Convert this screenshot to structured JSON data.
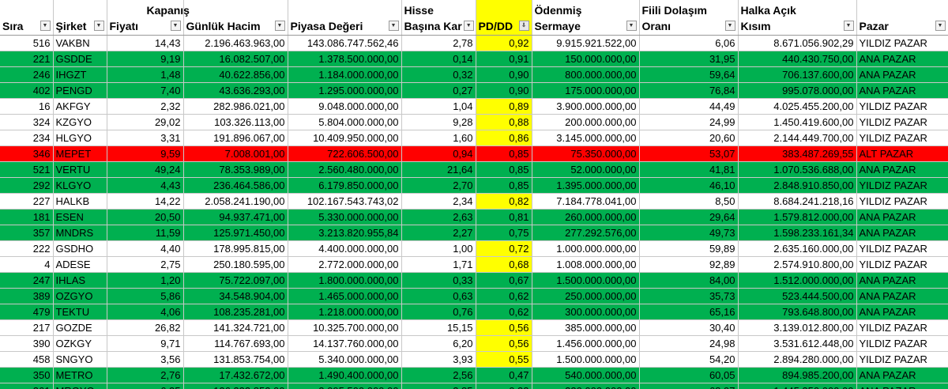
{
  "header_top": {
    "kapanis": "Kapanış",
    "hisse": "Hisse",
    "odenmis": "Ödenmiş",
    "fiili": "Fiili Dolaşım",
    "halka": "Halka Açık"
  },
  "header": {
    "sira": "Sıra",
    "sirket": "Şirket",
    "fiyati": "Fiyatı",
    "hacim": "Günlük Hacim",
    "piyasa": "Piyasa Değeri",
    "kar": "Başına Kar",
    "pddd": "PD/DD",
    "sermaye": "Sermaye",
    "orani": "Oranı",
    "kisim": "Kısım",
    "pazar": "Pazar"
  },
  "colors": {
    "green": "#00b050",
    "red": "#ff0000",
    "yellow": "#ffff00"
  },
  "rows": [
    {
      "sira": "516",
      "sirket": "VAKBN",
      "fiyat": "14,43",
      "hacim": "2.196.463.963,00",
      "piyasa": "143.086.747.562,46",
      "kar": "2,78",
      "pddd": "0,92",
      "sermaye": "9.915.921.522,00",
      "oran": "6,06",
      "kisim": "8.671.056.902,29",
      "pazar": "YILDIZ PAZAR",
      "color": "white",
      "pd_yellow": true
    },
    {
      "sira": "221",
      "sirket": "GSDDE",
      "fiyat": "9,19",
      "hacim": "16.082.507,00",
      "piyasa": "1.378.500.000,00",
      "kar": "0,14",
      "pddd": "0,91",
      "sermaye": "150.000.000,00",
      "oran": "31,95",
      "kisim": "440.430.750,00",
      "pazar": "ANA PAZAR",
      "color": "green",
      "pd_yellow": false
    },
    {
      "sira": "246",
      "sirket": "IHGZT",
      "fiyat": "1,48",
      "hacim": "40.622.856,00",
      "piyasa": "1.184.000.000,00",
      "kar": "0,32",
      "pddd": "0,90",
      "sermaye": "800.000.000,00",
      "oran": "59,64",
      "kisim": "706.137.600,00",
      "pazar": "ANA PAZAR",
      "color": "green",
      "pd_yellow": false
    },
    {
      "sira": "402",
      "sirket": "PENGD",
      "fiyat": "7,40",
      "hacim": "43.636.293,00",
      "piyasa": "1.295.000.000,00",
      "kar": "0,27",
      "pddd": "0,90",
      "sermaye": "175.000.000,00",
      "oran": "76,84",
      "kisim": "995.078.000,00",
      "pazar": "ANA PAZAR",
      "color": "green",
      "pd_yellow": false
    },
    {
      "sira": "16",
      "sirket": "AKFGY",
      "fiyat": "2,32",
      "hacim": "282.986.021,00",
      "piyasa": "9.048.000.000,00",
      "kar": "1,04",
      "pddd": "0,89",
      "sermaye": "3.900.000.000,00",
      "oran": "44,49",
      "kisim": "4.025.455.200,00",
      "pazar": "YILDIZ PAZAR",
      "color": "white",
      "pd_yellow": true
    },
    {
      "sira": "324",
      "sirket": "KZGYO",
      "fiyat": "29,02",
      "hacim": "103.326.113,00",
      "piyasa": "5.804.000.000,00",
      "kar": "9,28",
      "pddd": "0,88",
      "sermaye": "200.000.000,00",
      "oran": "24,99",
      "kisim": "1.450.419.600,00",
      "pazar": "YILDIZ PAZAR",
      "color": "white",
      "pd_yellow": true
    },
    {
      "sira": "234",
      "sirket": "HLGYO",
      "fiyat": "3,31",
      "hacim": "191.896.067,00",
      "piyasa": "10.409.950.000,00",
      "kar": "1,60",
      "pddd": "0,86",
      "sermaye": "3.145.000.000,00",
      "oran": "20,60",
      "kisim": "2.144.449.700,00",
      "pazar": "YILDIZ PAZAR",
      "color": "white",
      "pd_yellow": true
    },
    {
      "sira": "346",
      "sirket": "MEPET",
      "fiyat": "9,59",
      "hacim": "7.008.001,00",
      "piyasa": "722.606.500,00",
      "kar": "0,94",
      "pddd": "0,85",
      "sermaye": "75.350.000,00",
      "oran": "53,07",
      "kisim": "383.487.269,55",
      "pazar": "ALT PAZAR",
      "color": "red",
      "pd_yellow": false
    },
    {
      "sira": "521",
      "sirket": "VERTU",
      "fiyat": "49,24",
      "hacim": "78.353.989,00",
      "piyasa": "2.560.480.000,00",
      "kar": "21,64",
      "pddd": "0,85",
      "sermaye": "52.000.000,00",
      "oran": "41,81",
      "kisim": "1.070.536.688,00",
      "pazar": "ANA PAZAR",
      "color": "green",
      "pd_yellow": false
    },
    {
      "sira": "292",
      "sirket": "KLGYO",
      "fiyat": "4,43",
      "hacim": "236.464.586,00",
      "piyasa": "6.179.850.000,00",
      "kar": "2,70",
      "pddd": "0,85",
      "sermaye": "1.395.000.000,00",
      "oran": "46,10",
      "kisim": "2.848.910.850,00",
      "pazar": "YILDIZ PAZAR",
      "color": "green",
      "pd_yellow": false
    },
    {
      "sira": "227",
      "sirket": "HALKB",
      "fiyat": "14,22",
      "hacim": "2.058.241.190,00",
      "piyasa": "102.167.543.743,02",
      "kar": "2,34",
      "pddd": "0,82",
      "sermaye": "7.184.778.041,00",
      "oran": "8,50",
      "kisim": "8.684.241.218,16",
      "pazar": "YILDIZ PAZAR",
      "color": "white",
      "pd_yellow": true
    },
    {
      "sira": "181",
      "sirket": "ESEN",
      "fiyat": "20,50",
      "hacim": "94.937.471,00",
      "piyasa": "5.330.000.000,00",
      "kar": "2,63",
      "pddd": "0,81",
      "sermaye": "260.000.000,00",
      "oran": "29,64",
      "kisim": "1.579.812.000,00",
      "pazar": "ANA PAZAR",
      "color": "green",
      "pd_yellow": false
    },
    {
      "sira": "357",
      "sirket": "MNDRS",
      "fiyat": "11,59",
      "hacim": "125.971.450,00",
      "piyasa": "3.213.820.955,84",
      "kar": "2,27",
      "pddd": "0,75",
      "sermaye": "277.292.576,00",
      "oran": "49,73",
      "kisim": "1.598.233.161,34",
      "pazar": "ANA PAZAR",
      "color": "green",
      "pd_yellow": false
    },
    {
      "sira": "222",
      "sirket": "GSDHO",
      "fiyat": "4,40",
      "hacim": "178.995.815,00",
      "piyasa": "4.400.000.000,00",
      "kar": "1,00",
      "pddd": "0,72",
      "sermaye": "1.000.000.000,00",
      "oran": "59,89",
      "kisim": "2.635.160.000,00",
      "pazar": "YILDIZ PAZAR",
      "color": "white",
      "pd_yellow": true
    },
    {
      "sira": "4",
      "sirket": "ADESE",
      "fiyat": "2,75",
      "hacim": "250.180.595,00",
      "piyasa": "2.772.000.000,00",
      "kar": "1,71",
      "pddd": "0,68",
      "sermaye": "1.008.000.000,00",
      "oran": "92,89",
      "kisim": "2.574.910.800,00",
      "pazar": "YILDIZ PAZAR",
      "color": "white",
      "pd_yellow": true
    },
    {
      "sira": "247",
      "sirket": "IHLAS",
      "fiyat": "1,20",
      "hacim": "75.722.097,00",
      "piyasa": "1.800.000.000,00",
      "kar": "0,33",
      "pddd": "0,67",
      "sermaye": "1.500.000.000,00",
      "oran": "84,00",
      "kisim": "1.512.000.000,00",
      "pazar": "ANA PAZAR",
      "color": "green",
      "pd_yellow": false
    },
    {
      "sira": "389",
      "sirket": "OZGYO",
      "fiyat": "5,86",
      "hacim": "34.548.904,00",
      "piyasa": "1.465.000.000,00",
      "kar": "0,63",
      "pddd": "0,62",
      "sermaye": "250.000.000,00",
      "oran": "35,73",
      "kisim": "523.444.500,00",
      "pazar": "ANA PAZAR",
      "color": "green",
      "pd_yellow": false
    },
    {
      "sira": "479",
      "sirket": "TEKTU",
      "fiyat": "4,06",
      "hacim": "108.235.281,00",
      "piyasa": "1.218.000.000,00",
      "kar": "0,76",
      "pddd": "0,62",
      "sermaye": "300.000.000,00",
      "oran": "65,16",
      "kisim": "793.648.800,00",
      "pazar": "ANA PAZAR",
      "color": "green",
      "pd_yellow": false
    },
    {
      "sira": "217",
      "sirket": "GOZDE",
      "fiyat": "26,82",
      "hacim": "141.324.721,00",
      "piyasa": "10.325.700.000,00",
      "kar": "15,15",
      "pddd": "0,56",
      "sermaye": "385.000.000,00",
      "oran": "30,40",
      "kisim": "3.139.012.800,00",
      "pazar": "YILDIZ PAZAR",
      "color": "white",
      "pd_yellow": true
    },
    {
      "sira": "390",
      "sirket": "OZKGY",
      "fiyat": "9,71",
      "hacim": "114.767.693,00",
      "piyasa": "14.137.760.000,00",
      "kar": "6,20",
      "pddd": "0,56",
      "sermaye": "1.456.000.000,00",
      "oran": "24,98",
      "kisim": "3.531.612.448,00",
      "pazar": "YILDIZ PAZAR",
      "color": "white",
      "pd_yellow": true
    },
    {
      "sira": "458",
      "sirket": "SNGYO",
      "fiyat": "3,56",
      "hacim": "131.853.754,00",
      "piyasa": "5.340.000.000,00",
      "kar": "3,93",
      "pddd": "0,55",
      "sermaye": "1.500.000.000,00",
      "oran": "54,20",
      "kisim": "2.894.280.000,00",
      "pazar": "YILDIZ PAZAR",
      "color": "white",
      "pd_yellow": true
    },
    {
      "sira": "350",
      "sirket": "METRO",
      "fiyat": "2,76",
      "hacim": "17.432.672,00",
      "piyasa": "1.490.400.000,00",
      "kar": "2,56",
      "pddd": "0,47",
      "sermaye": "540.000.000,00",
      "oran": "60,05",
      "kisim": "894.985.200,00",
      "pazar": "ANA PAZAR",
      "color": "green",
      "pd_yellow": false
    },
    {
      "sira": "361",
      "sirket": "MRGYO",
      "fiyat": "6,35",
      "hacim": "126.233.853,00",
      "piyasa": "2.095.500.000,00",
      "kar": "3,85",
      "pddd": "0,33",
      "sermaye": "330.000.000,00",
      "oran": "68,97",
      "kisim": "1.445.350.000,00",
      "pazar": "ANA PAZAR",
      "color": "green",
      "pd_yellow": false
    }
  ]
}
